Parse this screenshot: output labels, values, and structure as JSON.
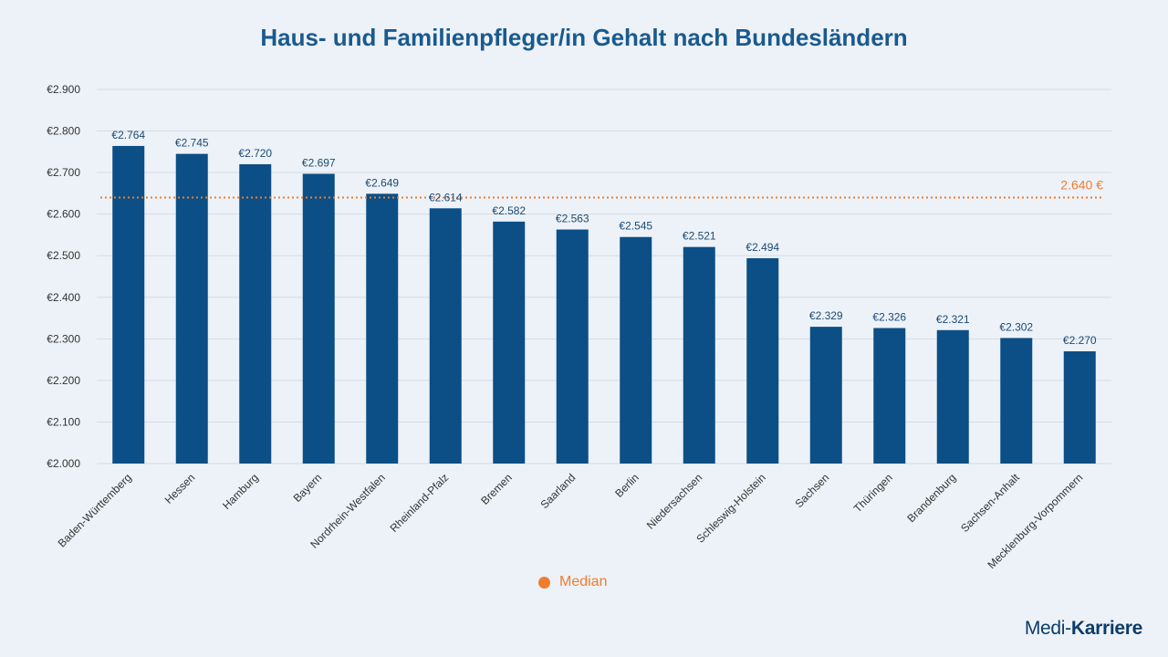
{
  "chart_data": {
    "type": "bar",
    "title": "Haus- und Familienpfleger/in Gehalt nach Bundesländern",
    "xlabel": "",
    "ylabel": "",
    "ylim": [
      2000,
      2900
    ],
    "ytick_values": [
      2000,
      2100,
      2200,
      2300,
      2400,
      2500,
      2600,
      2700,
      2800,
      2900
    ],
    "ytick_labels": [
      "€2.000",
      "€2.100",
      "€2.200",
      "€2.300",
      "€2.400",
      "€2.500",
      "€2.600",
      "€2.700",
      "€2.800",
      "€2.900"
    ],
    "grid": true,
    "categories": [
      "Baden-Württemberg",
      "Hessen",
      "Hamburg",
      "Bayern",
      "Nordrhein-Westfalen",
      "Rheinland-Pfalz",
      "Bremen",
      "Saarland",
      "Berlin",
      "Niedersachsen",
      "Schleswig-Holstein",
      "Sachsen",
      "Thüringen",
      "Brandenburg",
      "Sachsen-Anhalt",
      "Mecklenburg-Vorpommern"
    ],
    "values": [
      2764,
      2745,
      2720,
      2697,
      2649,
      2614,
      2582,
      2563,
      2545,
      2521,
      2494,
      2329,
      2326,
      2321,
      2302,
      2270
    ],
    "data_labels": [
      "€2.764",
      "€2.745",
      "€2.720",
      "€2.697",
      "€2.649",
      "€2.614",
      "€2.582",
      "€2.563",
      "€2.545",
      "€2.521",
      "€2.494",
      "€2.329",
      "€2.326",
      "€2.321",
      "€2.302",
      "€2.270"
    ],
    "median": {
      "value": 2640,
      "label": "2.640 €",
      "legend_label": "Median"
    },
    "legend_position": "bottom-center"
  },
  "colors": {
    "bar": "#0b4f86",
    "median": "#ef7d2c",
    "title": "#1a5a8e",
    "grid": "#d4dbe3",
    "axis_text": "#333333",
    "data_label": "#1b4a74",
    "background": "#edf2f8"
  },
  "brand": {
    "part1": "Medi-",
    "part2": "Karriere"
  }
}
